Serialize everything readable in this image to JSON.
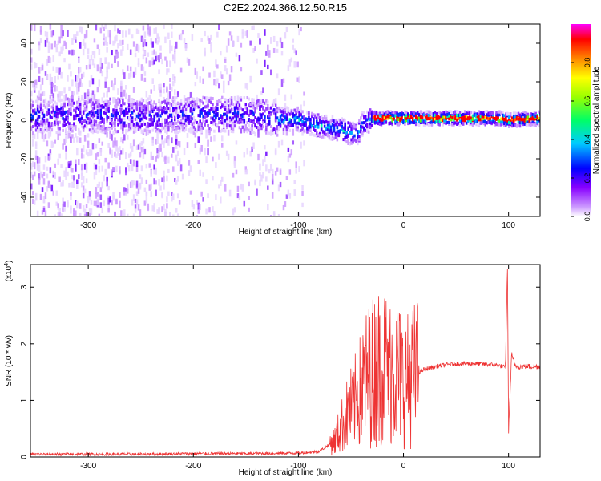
{
  "title": "C2E2.2024.366.12.50.R15",
  "chart_data": [
    {
      "type": "heatmap",
      "xlabel": "Height of straight line (km)",
      "ylabel": "Frequency (Hz)",
      "xlim": [
        -355,
        130
      ],
      "ylim": [
        -50,
        50
      ],
      "xticks": [
        -300,
        -200,
        -100,
        0,
        100
      ],
      "yticks": [
        -40,
        -20,
        0,
        20,
        40
      ],
      "colorbar": {
        "label": "Normalized spectral amplitude",
        "range": [
          0,
          1
        ],
        "ticks": [
          "0.0",
          "0.2",
          "0.4",
          "0.6",
          "0.8"
        ],
        "colors": [
          "#ffffff",
          "#cc99ff",
          "#8800ff",
          "#0000ff",
          "#00ccff",
          "#00ff66",
          "#99ff00",
          "#ffff00",
          "#ff8800",
          "#ff0000",
          "#ff00ff"
        ]
      },
      "band_center_hz": [
        [
          -355,
          2
        ],
        [
          -300,
          3
        ],
        [
          -250,
          2
        ],
        [
          -200,
          3
        ],
        [
          -150,
          3
        ],
        [
          -120,
          1
        ],
        [
          -100,
          0
        ],
        [
          -80,
          -3
        ],
        [
          -60,
          -5
        ],
        [
          -45,
          -8
        ],
        [
          -40,
          -2
        ],
        [
          -30,
          1
        ],
        [
          0,
          1
        ],
        [
          50,
          1
        ],
        [
          90,
          1
        ],
        [
          100,
          0
        ],
        [
          130,
          1
        ]
      ]
    },
    {
      "type": "line",
      "xlabel": "Height of straight line (km)",
      "ylabel": "SNR (10 * v/v)",
      "yunit": "(x10^4)",
      "yunit_base": "(x10",
      "yunit_exp": "4",
      "yunit_close": ")",
      "xlim": [
        -355,
        130
      ],
      "ylim": [
        0,
        3.4
      ],
      "xticks": [
        -300,
        -200,
        -100,
        0,
        100
      ],
      "yticks": [
        0,
        1,
        2,
        3
      ],
      "color": "#ee3333",
      "envelope": [
        [
          -355,
          0.05
        ],
        [
          -300,
          0.05
        ],
        [
          -250,
          0.05
        ],
        [
          -200,
          0.06
        ],
        [
          -150,
          0.06
        ],
        [
          -100,
          0.07
        ],
        [
          -80,
          0.1
        ],
        [
          -65,
          0.3
        ],
        [
          -55,
          0.7
        ],
        [
          -45,
          1.0
        ],
        [
          -35,
          1.4
        ],
        [
          -25,
          1.6
        ],
        [
          -15,
          1.6
        ],
        [
          -5,
          1.5
        ],
        [
          0,
          1.3
        ],
        [
          10,
          1.45
        ],
        [
          20,
          1.55
        ],
        [
          30,
          1.6
        ],
        [
          50,
          1.65
        ],
        [
          70,
          1.65
        ],
        [
          90,
          1.62
        ],
        [
          97,
          1.58
        ],
        [
          99,
          3.4
        ],
        [
          100,
          0.45
        ],
        [
          103,
          1.85
        ],
        [
          106,
          1.6
        ],
        [
          130,
          1.6
        ]
      ]
    }
  ]
}
